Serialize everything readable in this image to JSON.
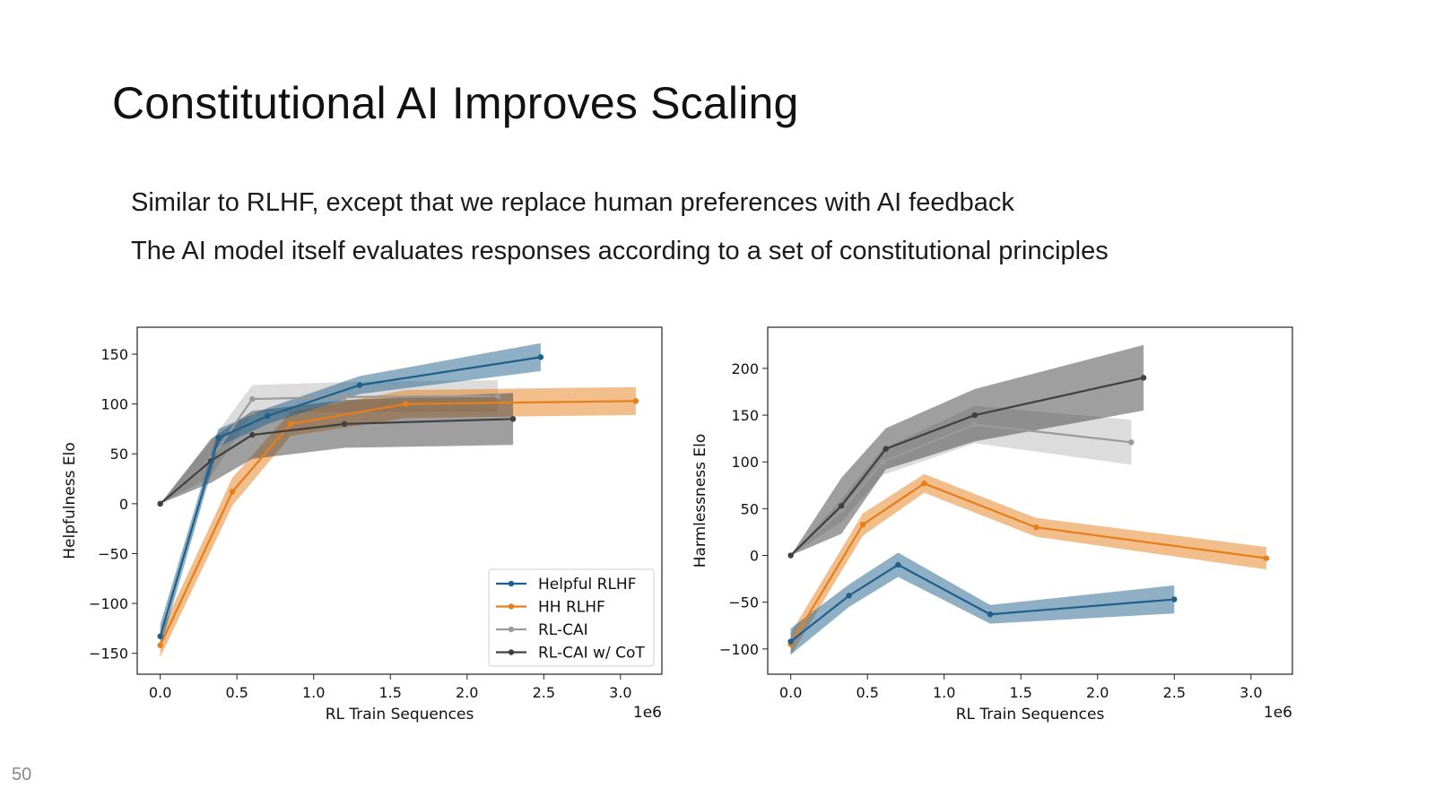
{
  "slide": {
    "title": "Constitutional AI Improves Scaling",
    "bullets": [
      "Similar to RLHF, except that we replace human preferences with AI feedback",
      "The AI model itself evaluates responses according to a set of constitutional principles"
    ],
    "page_number": "50"
  },
  "colors": {
    "Helpful RLHF": "#1f5f8b",
    "HH RLHF": "#e67e1a",
    "RL-CAI": "#9a9a9a",
    "RL-CAI w/ CoT": "#404040"
  },
  "chart_data": [
    {
      "type": "line",
      "xlabel": "RL Train Sequences",
      "x_offset_label": "1e6",
      "ylabel": "Helpfulness Elo",
      "xlim": [
        -0.15,
        3.27
      ],
      "ylim": [
        -171,
        177
      ],
      "xticks": [
        0.0,
        0.5,
        1.0,
        1.5,
        2.0,
        2.5,
        3.0
      ],
      "xtick_labels": [
        "0.0",
        "0.5",
        "1.0",
        "1.5",
        "2.0",
        "2.5",
        "3.0"
      ],
      "yticks": [
        150,
        100,
        50,
        0,
        -50,
        -100,
        -150
      ],
      "ytick_labels": [
        "150",
        "100",
        "50",
        "0",
        "−50",
        "−100",
        "−150"
      ],
      "legend": {
        "placement": "lower-right",
        "entries": [
          "Helpful RLHF",
          "HH RLHF",
          "RL-CAI",
          "RL-CAI w/ CoT"
        ]
      },
      "series": [
        {
          "name": "RL-CAI",
          "x": [
            0.0,
            0.33,
            0.6,
            1.2,
            2.2
          ],
          "y": [
            0,
            45,
            105,
            107,
            108
          ],
          "band": [
            0,
            18,
            14,
            15,
            16
          ]
        },
        {
          "name": "HH RLHF",
          "x": [
            0.0,
            0.47,
            0.85,
            1.6,
            3.1
          ],
          "y": [
            -142,
            12,
            80,
            100,
            103
          ],
          "band": [
            12,
            14,
            12,
            14,
            14
          ]
        },
        {
          "name": "RL-CAI w/ CoT",
          "x": [
            0.0,
            0.33,
            0.6,
            1.2,
            2.3
          ],
          "y": [
            0,
            43,
            69,
            80,
            85
          ],
          "band": [
            0,
            22,
            24,
            24,
            26
          ]
        },
        {
          "name": "Helpful RLHF",
          "x": [
            0.0,
            0.38,
            0.7,
            1.3,
            2.48
          ],
          "y": [
            -133,
            66,
            88,
            119,
            147
          ],
          "band": [
            12,
            9,
            8,
            9,
            14
          ]
        }
      ]
    },
    {
      "type": "line",
      "xlabel": "RL Train Sequences",
      "x_offset_label": "1e6",
      "ylabel": "Harmlessness Elo",
      "xlim": [
        -0.15,
        3.27
      ],
      "ylim": [
        -127,
        244
      ],
      "xticks": [
        0.0,
        0.5,
        1.0,
        1.5,
        2.0,
        2.5,
        3.0
      ],
      "xtick_labels": [
        "0.0",
        "0.5",
        "1.0",
        "1.5",
        "2.0",
        "2.5",
        "3.0"
      ],
      "yticks": [
        200,
        150,
        100,
        50,
        0,
        -50,
        -100
      ],
      "ytick_labels": [
        "200",
        "150",
        "100",
        "50",
        "0",
        "−50",
        "−100"
      ],
      "series": [
        {
          "name": "RL-CAI",
          "x": [
            0.0,
            0.33,
            0.6,
            1.2,
            2.22
          ],
          "y": [
            0,
            48,
            100,
            140,
            121
          ],
          "band": [
            0,
            12,
            14,
            20,
            24
          ]
        },
        {
          "name": "RL-CAI w/ CoT",
          "x": [
            0.0,
            0.33,
            0.62,
            1.2,
            2.3
          ],
          "y": [
            0,
            53,
            114,
            150,
            190
          ],
          "band": [
            0,
            30,
            22,
            28,
            35
          ]
        },
        {
          "name": "HH RLHF",
          "x": [
            0.0,
            0.47,
            0.87,
            1.6,
            3.1
          ],
          "y": [
            -95,
            33,
            77,
            30,
            -3
          ],
          "band": [
            12,
            12,
            10,
            10,
            12
          ]
        },
        {
          "name": "Helpful RLHF",
          "x": [
            0.0,
            0.38,
            0.7,
            1.3,
            2.5
          ],
          "y": [
            -92,
            -43,
            -10,
            -63,
            -47
          ],
          "band": [
            14,
            12,
            13,
            10,
            15
          ]
        }
      ]
    }
  ]
}
